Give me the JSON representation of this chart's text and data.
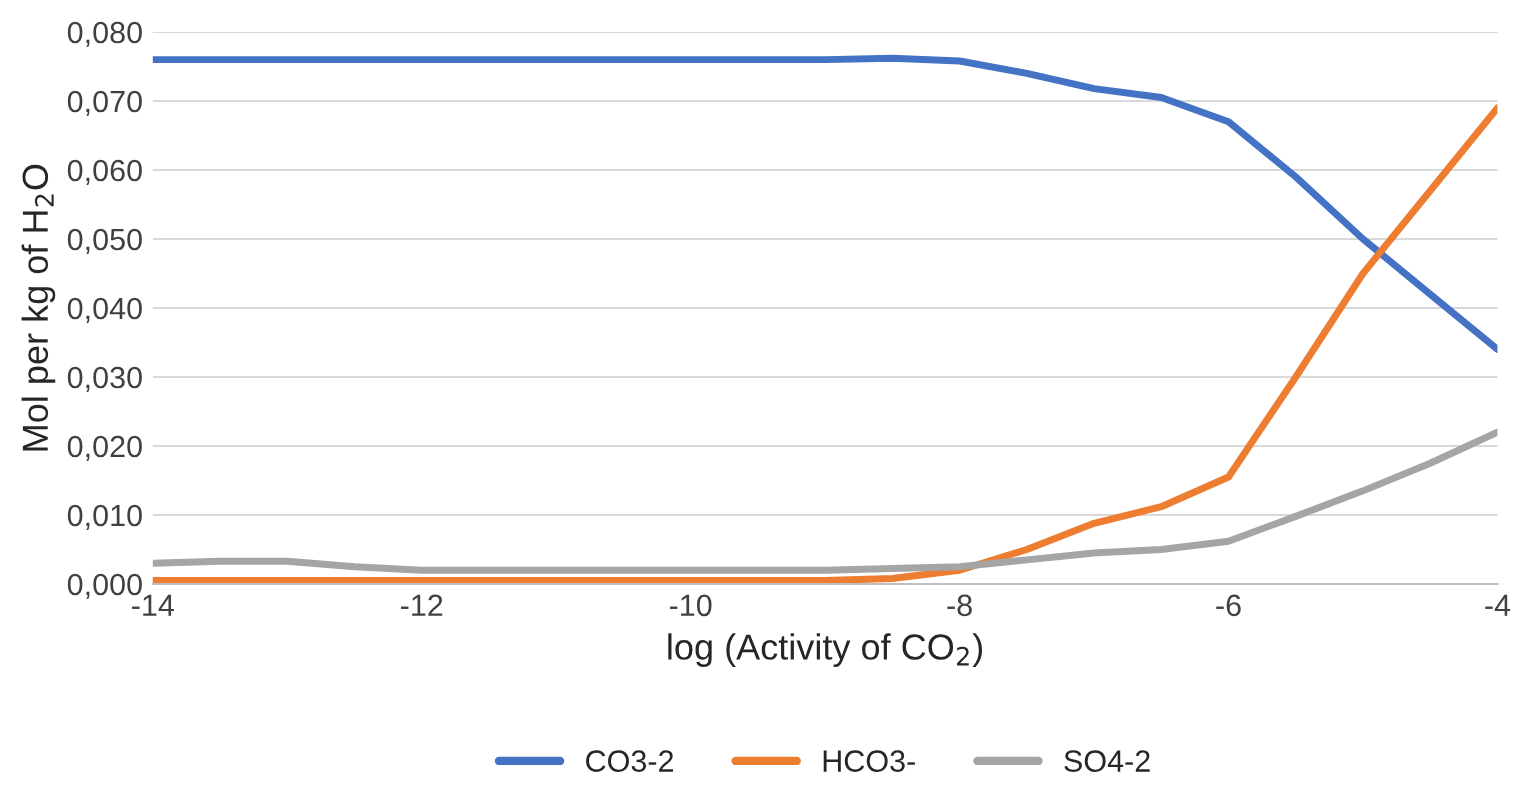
{
  "chart_data": {
    "type": "line",
    "xlabel": "log (Activity of CO$_{2}$)",
    "ylabel": "Mol per kg of H$_{2}$O",
    "series": [
      {
        "name": "CO3-2",
        "color": "#4472c4",
        "x": [
          -14,
          -12,
          -10,
          -9,
          -8.5,
          -8,
          -7.5,
          -7,
          -6.5,
          -6,
          -5.5,
          -5,
          -4.5,
          -4
        ],
        "values": [
          0.076,
          0.076,
          0.076,
          0.076,
          0.0762,
          0.0758,
          0.074,
          0.0718,
          0.0705,
          0.067,
          0.059,
          0.05,
          0.042,
          0.034
        ]
      },
      {
        "name": "HCO3-",
        "color": "#ed7d31",
        "x": [
          -14,
          -12,
          -10,
          -9,
          -8.5,
          -8,
          -7.5,
          -7,
          -6.5,
          -6,
          -5.5,
          -5,
          -4.5,
          -4
        ],
        "values": [
          0.0005,
          0.0005,
          0.0005,
          0.0005,
          0.0008,
          0.002,
          0.005,
          0.0088,
          0.0112,
          0.0155,
          0.03,
          0.045,
          0.057,
          0.069
        ]
      },
      {
        "name": "SO4-2",
        "color": "#a5a5a5",
        "x": [
          -14,
          -13.5,
          -13,
          -12.5,
          -12,
          -10,
          -9,
          -8,
          -7.5,
          -7,
          -6.5,
          -6,
          -5.5,
          -5,
          -4.5,
          -4
        ],
        "values": [
          0.003,
          0.0033,
          0.0033,
          0.0025,
          0.002,
          0.002,
          0.002,
          0.0025,
          0.0035,
          0.0045,
          0.005,
          0.0062,
          0.0098,
          0.0135,
          0.0175,
          0.022
        ]
      }
    ],
    "xlim": [
      -14,
      -4
    ],
    "xticks": [
      -14,
      -12,
      -10,
      -8,
      -6,
      -4
    ],
    "ylim": [
      0,
      0.08
    ],
    "yticks": [
      {
        "value": 0,
        "label": "0,000"
      },
      {
        "value": 0.01,
        "label": "0,010"
      },
      {
        "value": 0.02,
        "label": "0,020"
      },
      {
        "value": 0.03,
        "label": "0,030"
      },
      {
        "value": 0.04,
        "label": "0,040"
      },
      {
        "value": 0.05,
        "label": "0,050"
      },
      {
        "value": 0.06,
        "label": "0,060"
      },
      {
        "value": 0.07,
        "label": "0,070"
      },
      {
        "value": 0.08,
        "label": "0,080"
      }
    ],
    "grid": "y",
    "legend": "bottom",
    "line_style": "solid",
    "marker": "none"
  }
}
